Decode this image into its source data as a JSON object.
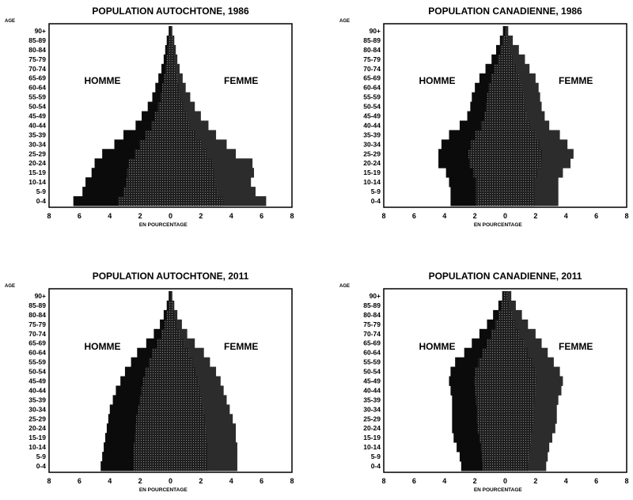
{
  "chart_data": [
    {
      "type": "bar",
      "title": "POPULATION AUTOCHTONE, 1986",
      "xlabel": "EN POURCENTAGE",
      "ylabel": "AGE",
      "xlim": [
        -8,
        8
      ],
      "xticks": [
        "8",
        "6",
        "4",
        "2",
        "0",
        "2",
        "4",
        "6",
        "8"
      ],
      "sex_labels": {
        "left": "HOMME",
        "right": "FEMME"
      },
      "categories": [
        "0-4",
        "5-9",
        "10-14",
        "15-19",
        "20-24",
        "25-29",
        "30-34",
        "35-39",
        "40-44",
        "45-49",
        "50-54",
        "55-59",
        "60-64",
        "65-69",
        "70-74",
        "75-79",
        "80-84",
        "85-89",
        "90+"
      ],
      "series": [
        {
          "name": "HOMME",
          "values": [
            6.4,
            5.8,
            5.6,
            5.2,
            5.0,
            4.5,
            3.7,
            3.1,
            2.3,
            1.9,
            1.5,
            1.2,
            1.0,
            0.8,
            0.6,
            0.45,
            0.35,
            0.25,
            0.12
          ]
        },
        {
          "name": "FEMME",
          "values": [
            6.3,
            5.6,
            5.3,
            5.5,
            5.4,
            4.3,
            3.7,
            3.0,
            2.5,
            2.0,
            1.6,
            1.3,
            1.0,
            0.8,
            0.6,
            0.45,
            0.35,
            0.25,
            0.12
          ]
        }
      ]
    },
    {
      "type": "bar",
      "title": "POPULATION CANADIENNE, 1986",
      "xlabel": "EN POURCENTAGE",
      "ylabel": "AGE",
      "xlim": [
        -8,
        8
      ],
      "xticks": [
        "8",
        "6",
        "4",
        "2",
        "0",
        "2",
        "4",
        "6",
        "8"
      ],
      "sex_labels": {
        "left": "HOMME",
        "right": "FEMME"
      },
      "categories": [
        "0-4",
        "5-9",
        "10-14",
        "15-19",
        "20-24",
        "25-29",
        "30-34",
        "35-39",
        "40-44",
        "45-49",
        "50-54",
        "55-59",
        "60-64",
        "65-69",
        "70-74",
        "75-79",
        "80-84",
        "85-89",
        "90+"
      ],
      "series": [
        {
          "name": "HOMME",
          "values": [
            3.6,
            3.6,
            3.7,
            3.9,
            4.4,
            4.4,
            4.2,
            3.7,
            3.0,
            2.5,
            2.3,
            2.2,
            2.0,
            1.7,
            1.3,
            0.9,
            0.6,
            0.35,
            0.15
          ]
        },
        {
          "name": "FEMME",
          "values": [
            3.5,
            3.5,
            3.5,
            3.8,
            4.3,
            4.5,
            4.1,
            3.6,
            2.9,
            2.6,
            2.4,
            2.3,
            2.2,
            2.0,
            1.6,
            1.3,
            0.9,
            0.5,
            0.2
          ]
        }
      ]
    },
    {
      "type": "bar",
      "title": "POPULATION AUTOCHTONE, 2011",
      "xlabel": "EN POURCENTAGE",
      "ylabel": "AGE",
      "xlim": [
        -8,
        8
      ],
      "xticks": [
        "8",
        "6",
        "4",
        "2",
        "0",
        "2",
        "4",
        "6",
        "8"
      ],
      "sex_labels": {
        "left": "HOMME",
        "right": "FEMME"
      },
      "categories": [
        "0-4",
        "5-9",
        "10-14",
        "15-19",
        "20-24",
        "25-29",
        "30-34",
        "35-39",
        "40-44",
        "45-49",
        "50-54",
        "55-59",
        "60-64",
        "65-69",
        "70-74",
        "75-79",
        "80-84",
        "85-89",
        "90+"
      ],
      "series": [
        {
          "name": "HOMME",
          "values": [
            4.6,
            4.5,
            4.4,
            4.3,
            4.2,
            4.1,
            4.0,
            3.8,
            3.6,
            3.3,
            3.0,
            2.6,
            2.2,
            1.6,
            1.1,
            0.7,
            0.45,
            0.25,
            0.12
          ]
        },
        {
          "name": "FEMME",
          "values": [
            4.4,
            4.4,
            4.4,
            4.3,
            4.3,
            4.1,
            3.9,
            3.7,
            3.5,
            3.3,
            3.0,
            2.6,
            2.2,
            1.6,
            1.1,
            0.75,
            0.45,
            0.25,
            0.12
          ]
        }
      ]
    },
    {
      "type": "bar",
      "title": "POPULATION CANADIENNE, 2011",
      "xlabel": "EN POURCENTAGE",
      "ylabel": "AGE",
      "xlim": [
        -8,
        8
      ],
      "xticks": [
        "8",
        "6",
        "4",
        "2",
        "0",
        "2",
        "4",
        "6",
        "8"
      ],
      "sex_labels": {
        "left": "HOMME",
        "right": "FEMME"
      },
      "categories": [
        "0-4",
        "5-9",
        "10-14",
        "15-19",
        "20-24",
        "25-29",
        "30-34",
        "35-39",
        "40-44",
        "45-49",
        "50-54",
        "55-59",
        "60-64",
        "65-69",
        "70-74",
        "75-79",
        "80-84",
        "85-89",
        "90+"
      ],
      "series": [
        {
          "name": "HOMME",
          "values": [
            2.9,
            3.0,
            3.2,
            3.4,
            3.5,
            3.5,
            3.5,
            3.5,
            3.6,
            3.7,
            3.6,
            3.3,
            2.7,
            2.2,
            1.7,
            1.2,
            0.8,
            0.45,
            0.2
          ]
        },
        {
          "name": "FEMME",
          "values": [
            2.7,
            2.8,
            2.9,
            3.1,
            3.3,
            3.4,
            3.4,
            3.5,
            3.7,
            3.8,
            3.6,
            3.2,
            2.8,
            2.4,
            2.0,
            1.5,
            1.1,
            0.7,
            0.4
          ]
        }
      ]
    }
  ],
  "colors": {
    "homme": "#0b0b0b",
    "femme": "#2c2c2c",
    "frame": "#000000"
  }
}
